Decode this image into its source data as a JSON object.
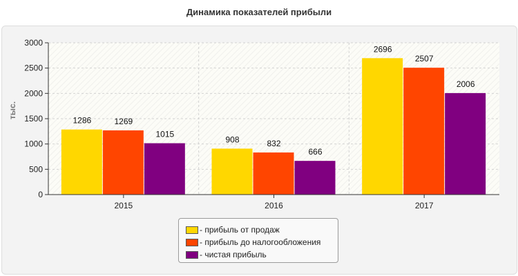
{
  "chart_data": {
    "type": "bar",
    "title": "Динамика показателей прибыли",
    "ylabel": "тыс.",
    "xlabel": "",
    "categories": [
      "2015",
      "2016",
      "2017"
    ],
    "ylim": [
      0,
      3000
    ],
    "yticks": [
      0,
      500,
      1000,
      1500,
      2000,
      2500,
      3000
    ],
    "grid": true,
    "legend_position": "bottom-center",
    "series": [
      {
        "name": "- прибыль от продаж",
        "color": "#FFD700",
        "values": [
          1286,
          908,
          2696
        ]
      },
      {
        "name": "- прибыль до налогообложения",
        "color": "#FF4500",
        "values": [
          1269,
          832,
          2507
        ]
      },
      {
        "name": "- чистая прибыль",
        "color": "#800080",
        "values": [
          1015,
          666,
          2006
        ]
      }
    ]
  }
}
